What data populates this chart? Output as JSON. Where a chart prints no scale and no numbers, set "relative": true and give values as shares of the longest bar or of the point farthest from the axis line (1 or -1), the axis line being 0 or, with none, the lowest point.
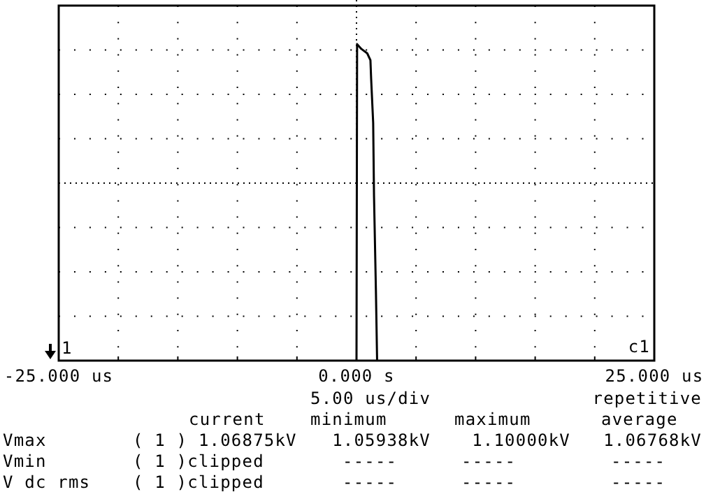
{
  "chart_data": {
    "type": "line",
    "relative": true,
    "grid": true,
    "line_style": "solid",
    "marker": "none",
    "tick_labels": "x",
    "x": [
      0,
      0.05,
      0.4,
      0.9,
      1.17,
      1.23,
      1.4,
      1.47,
      1.63,
      1.73
    ],
    "series": [
      {
        "color": "#000000",
        "values": [
          0,
          1,
          0.985,
          0.971,
          0.949,
          0.89,
          0.751,
          0.521,
          0.221,
          0
        ]
      }
    ],
    "xlim": [
      -25,
      25
    ],
    "xticks": [
      {
        "value": -25,
        "label": "-25.000 us"
      },
      {
        "value": -20,
        "label": null
      },
      {
        "value": -15,
        "label": null
      },
      {
        "value": -10,
        "label": null
      },
      {
        "value": -5,
        "label": null
      },
      {
        "value": 0,
        "label": "0.000  s"
      },
      {
        "value": 5,
        "label": null
      },
      {
        "value": 10,
        "label": null
      },
      {
        "value": 15,
        "label": null
      },
      {
        "value": 20,
        "label": null
      },
      {
        "value": 25,
        "label": "25.000 us"
      }
    ],
    "annotations": [
      "1",
      "c1",
      "5.00 us/div",
      "repetitive",
      "current",
      "minimum",
      "maximum",
      "average",
      "Vmax",
      "( 1 ) 1.06875kV",
      "1.05938kV",
      "1.10000kV",
      "1.06768kV",
      "Vmin",
      "( 1 )clipped",
      "-----",
      "-----",
      "-----",
      "V dc rms",
      "( 1 )clipped",
      "-----",
      "-----",
      "-----"
    ]
  }
}
